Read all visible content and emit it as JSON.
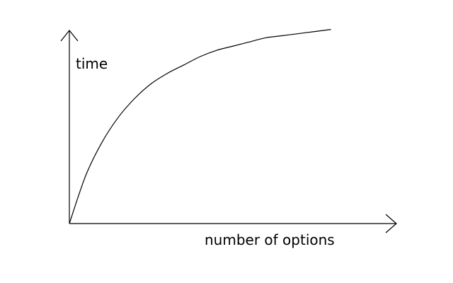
{
  "chart_data": {
    "type": "line",
    "title": "",
    "xlabel": "number of options",
    "ylabel": "time",
    "xlim": [
      0,
      1
    ],
    "ylim": [
      0,
      1
    ],
    "grid": false,
    "legend": "none",
    "axis_ticks": false,
    "series": [
      {
        "x": [
          0,
          0.05,
          0.1,
          0.15,
          0.2,
          0.25,
          0.3,
          0.35,
          0.4,
          0.45,
          0.5,
          0.55,
          0.6,
          0.65,
          0.7,
          0.75,
          0.8
        ],
        "values": [
          0,
          0.23,
          0.39,
          0.51,
          0.6,
          0.67,
          0.72,
          0.76,
          0.8,
          0.83,
          0.85,
          0.87,
          0.89,
          0.9,
          0.91,
          0.92,
          0.93
        ],
        "color": "#000000"
      }
    ]
  }
}
